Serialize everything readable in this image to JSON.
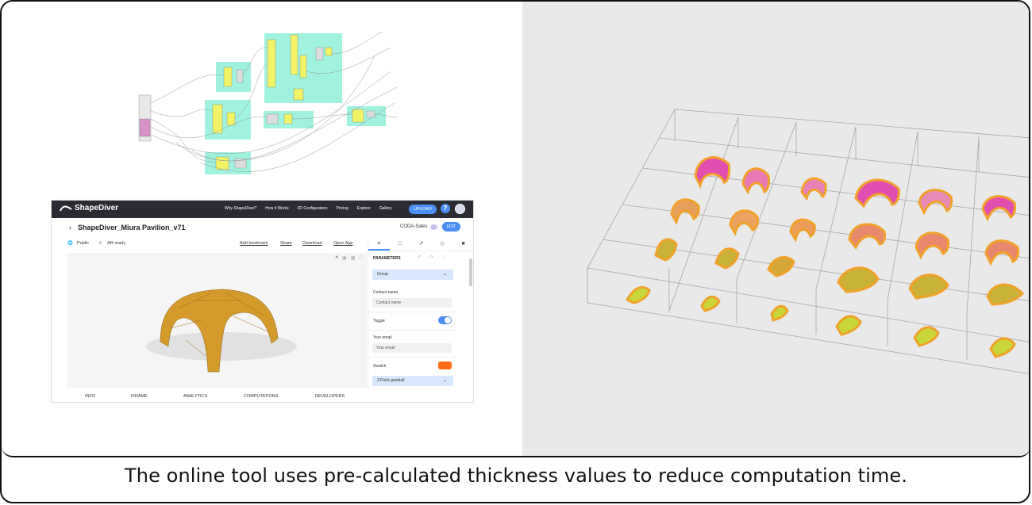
{
  "caption": "The online tool uses pre-calculated thickness values to reduce computation time.",
  "colors": {
    "frame_border": "#111111",
    "right_background": "#e9e9e9",
    "node_group": "#8ff0d8",
    "shell_orange": "#f0a12a",
    "shell_pink": "#e04fb0",
    "shell_yellow_green": "#c8d63a",
    "accent_blue": "#4b8ff5",
    "swatch_orange": "#ff6a14",
    "topbar": "#2b2c33",
    "pavilion_gold": "#d49a2c"
  },
  "app": {
    "brand": "ShapeDiver",
    "nav": [
      "Why ShapeDiver?",
      "How it Works",
      "3D Configurators",
      "Pricing",
      "Explore",
      "Gallery"
    ],
    "upload_label": "UPLOAD",
    "help_label": "?",
    "back_icon": "chevron-left-icon",
    "model_title": "ShapeDiver_Miura Pavilion_v71",
    "team": "CODA-Sales",
    "edit_label": "EDIT",
    "visibility": "Public",
    "ar": "AR-ready",
    "add_bookmark": "Add bookmark",
    "share": "Share",
    "download": "Download",
    "open_app": "Open App",
    "panel": {
      "heading": "PARAMETERS",
      "group_label": "Group",
      "contact_label": "Contact name",
      "contact_placeholder": "Contact name",
      "toggle_label": "Toggle",
      "email_label": "Your email",
      "email_placeholder": "Your email",
      "swatch_label": "Swatch",
      "gumball_label": "3 Point gumball"
    },
    "bottom_tabs": [
      "INFO",
      "IFRAME",
      "ANALYTICS",
      "COMPUTATIONS",
      "DEVELOPERS"
    ]
  }
}
